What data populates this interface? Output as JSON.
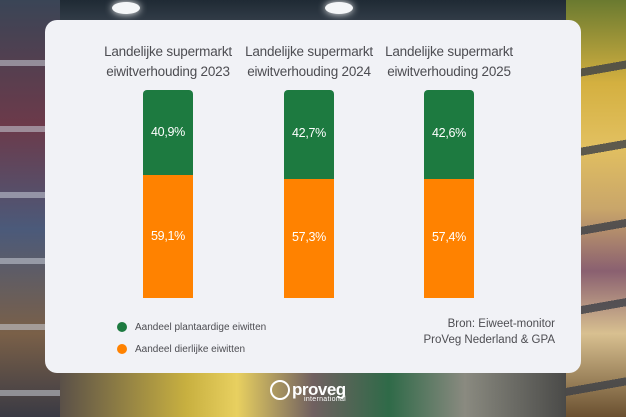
{
  "chart_data": {
    "type": "bar",
    "stacked": true,
    "percent_stacked": true,
    "charts": [
      {
        "title": [
          "Landelijke supermarkt",
          "eiwitverhouding 2023"
        ],
        "year": "2023",
        "series": [
          {
            "name": "Aandeel plantaardige eiwitten",
            "value": 40.9,
            "label": "40,9%"
          },
          {
            "name": "Aandeel dierlijke eiwitten",
            "value": 59.1,
            "label": "59,1%"
          }
        ]
      },
      {
        "title": [
          "Landelijke supermarkt",
          "eiwitverhouding 2024"
        ],
        "year": "2024",
        "series": [
          {
            "name": "Aandeel plantaardige eiwitten",
            "value": 42.7,
            "label": "42,7%"
          },
          {
            "name": "Aandeel dierlijke eiwitten",
            "value": 57.3,
            "label": "57,3%"
          }
        ]
      },
      {
        "title": [
          "Landelijke supermarkt",
          "eiwitverhouding 2025"
        ],
        "year": "2025",
        "series": [
          {
            "name": "Aandeel plantaardige eiwitten",
            "value": 42.6,
            "label": "42,6%"
          },
          {
            "name": "Aandeel dierlijke eiwitten",
            "value": 57.4,
            "label": "57,4%"
          }
        ]
      }
    ],
    "legend": [
      {
        "label": "Aandeel plantaardige eiwitten",
        "color": "#1d7a40"
      },
      {
        "label": "Aandeel dierlijke eiwitten",
        "color": "#ff8200"
      }
    ],
    "legend_placement": "bottom-left",
    "ylim": [
      0,
      100
    ],
    "grid": false
  },
  "source": [
    "Bron: Eiweet-monitor",
    "ProVeg Nederland & GPA"
  ],
  "logo": {
    "word": "proveg",
    "sub": "international"
  },
  "colors": {
    "plant": "#1d7a40",
    "animal": "#ff8200",
    "card": "#f1f2f6",
    "text": "#4d4d52"
  }
}
